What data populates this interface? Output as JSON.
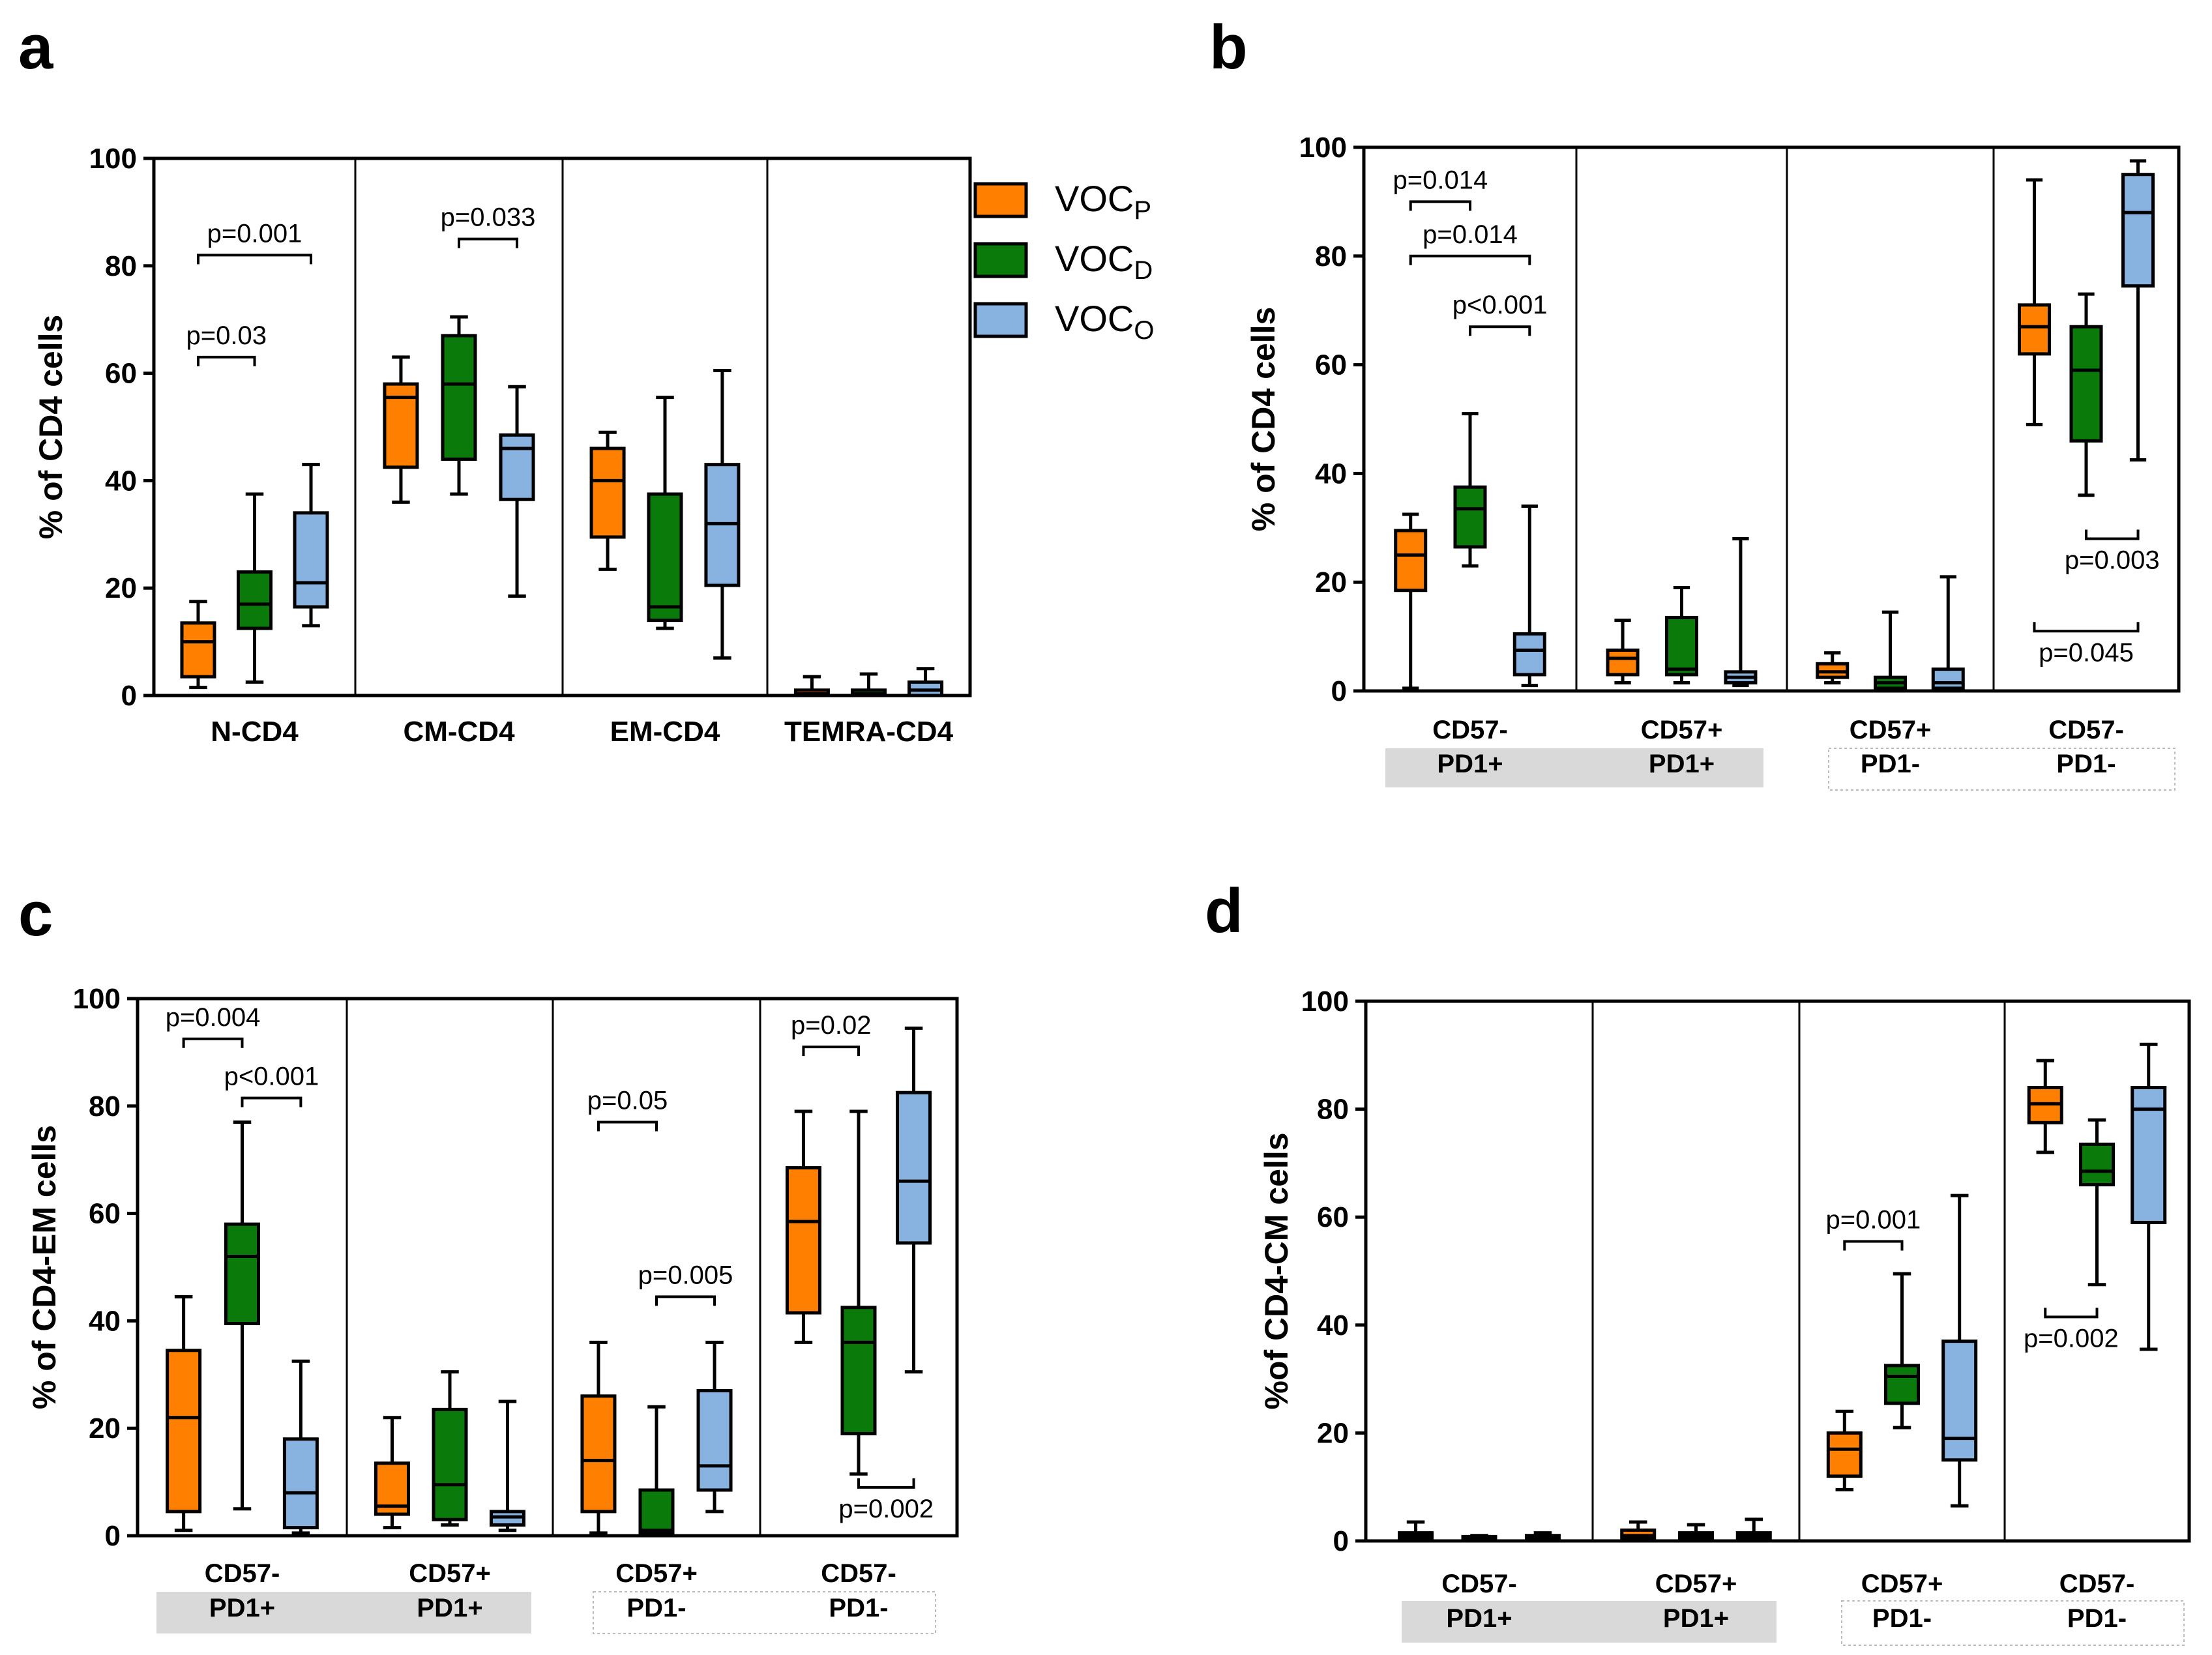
{
  "colors": {
    "VOCP": "#ff8000",
    "VOCD": "#0a7a0a",
    "VOCO": "#88b3e0",
    "shade": "#d9d9d9",
    "black": "#000000"
  },
  "legend": [
    {
      "key": "VOCP",
      "base": "VOC",
      "sub": "P"
    },
    {
      "key": "VOCD",
      "base": "VOC",
      "sub": "D"
    },
    {
      "key": "VOCO",
      "base": "VOC",
      "sub": "O"
    }
  ],
  "chart_data": [
    {
      "panel": "a",
      "type": "box",
      "ylabel": "% of CD4 cells",
      "ylim": [
        0,
        100
      ],
      "yticks": [
        0,
        20,
        40,
        60,
        80,
        100
      ],
      "categories": [
        "N-CD4",
        "CM-CD4",
        "EM-CD4",
        "TEMRA-CD4"
      ],
      "series_order": [
        "VOCP",
        "VOCD",
        "VOCO"
      ],
      "boxes": [
        [
          {
            "min": 1.5,
            "q1": 3.5,
            "med": 10,
            "q3": 13.5,
            "max": 17.5
          },
          {
            "min": 2.5,
            "q1": 12.5,
            "med": 17,
            "q3": 23,
            "max": 37.5
          },
          {
            "min": 13,
            "q1": 16.5,
            "med": 21,
            "q3": 34,
            "max": 43
          }
        ],
        [
          {
            "min": 36,
            "q1": 42.5,
            "med": 55.5,
            "q3": 58,
            "max": 63
          },
          {
            "min": 37.5,
            "q1": 44,
            "med": 58,
            "q3": 67,
            "max": 70.5
          },
          {
            "min": 18.5,
            "q1": 36.5,
            "med": 46,
            "q3": 48.5,
            "max": 57.5
          }
        ],
        [
          {
            "min": 23.5,
            "q1": 29.5,
            "med": 40,
            "q3": 46,
            "max": 49
          },
          {
            "min": 12.5,
            "q1": 14,
            "med": 16.5,
            "q3": 37.5,
            "max": 55.5
          },
          {
            "min": 7,
            "q1": 20.5,
            "med": 32,
            "q3": 43,
            "max": 60.5
          }
        ],
        [
          {
            "min": 0,
            "q1": 0,
            "med": 0.3,
            "q3": 1,
            "max": 3.5
          },
          {
            "min": 0,
            "q1": 0,
            "med": 0.3,
            "q3": 1,
            "max": 4
          },
          {
            "min": 0,
            "q1": 0,
            "med": 1,
            "q3": 2.5,
            "max": 5
          }
        ]
      ],
      "pvalues": [
        {
          "label": "p=0.03",
          "group": 0,
          "from": 0,
          "to": 1,
          "y": 63
        },
        {
          "label": "p=0.001",
          "group": 0,
          "from": 0,
          "to": 2,
          "y": 82
        },
        {
          "label": "p=0.033",
          "group": 1,
          "from": 1,
          "to": 2,
          "y": 85
        }
      ]
    },
    {
      "panel": "b",
      "type": "box",
      "ylabel": "% of CD4 cells",
      "ylim": [
        0,
        100
      ],
      "yticks": [
        0,
        20,
        40,
        60,
        80,
        100
      ],
      "categories": [
        {
          "line1": "CD57-",
          "line2": "PD1+"
        },
        {
          "line1": "CD57+",
          "line2": "PD1+"
        },
        {
          "line1": "CD57+",
          "line2": "PD1-"
        },
        {
          "line1": "CD57-",
          "line2": "PD1-"
        }
      ],
      "series_order": [
        "VOCP",
        "VOCD",
        "VOCO"
      ],
      "boxes": [
        [
          {
            "min": 0.5,
            "q1": 18.5,
            "med": 25,
            "q3": 29.5,
            "max": 32.5
          },
          {
            "min": 23,
            "q1": 26.5,
            "med": 33.5,
            "q3": 37.5,
            "max": 51
          },
          {
            "min": 1,
            "q1": 3,
            "med": 7.5,
            "q3": 10.5,
            "max": 34
          }
        ],
        [
          {
            "min": 1.5,
            "q1": 3,
            "med": 6,
            "q3": 7.5,
            "max": 13
          },
          {
            "min": 1.5,
            "q1": 3,
            "med": 4,
            "q3": 13.5,
            "max": 19
          },
          {
            "min": 1,
            "q1": 1.5,
            "med": 2.5,
            "q3": 3.5,
            "max": 28
          }
        ],
        [
          {
            "min": 1.5,
            "q1": 2.5,
            "med": 3.5,
            "q3": 5,
            "max": 7
          },
          {
            "min": 0,
            "q1": 0.5,
            "med": 1.5,
            "q3": 2.5,
            "max": 14.5
          },
          {
            "min": 0,
            "q1": 0.5,
            "med": 1.5,
            "q3": 4,
            "max": 21
          }
        ],
        [
          {
            "min": 49,
            "q1": 62,
            "med": 67,
            "q3": 71,
            "max": 94
          },
          {
            "min": 36,
            "q1": 46,
            "med": 59,
            "q3": 67,
            "max": 73
          },
          {
            "min": 42.5,
            "q1": 74.5,
            "med": 88,
            "q3": 95,
            "max": 97.5
          }
        ]
      ],
      "pvalues": [
        {
          "label": "p=0.014",
          "group": 0,
          "from": 0,
          "to": 1,
          "y": 90
        },
        {
          "label": "p=0.014",
          "group": 0,
          "from": 0,
          "to": 2,
          "y": 80
        },
        {
          "label": "p<0.001",
          "group": 0,
          "from": 1,
          "to": 2,
          "y": 67
        },
        {
          "label": "p=0.003",
          "group": 3,
          "from": 1,
          "to": 2,
          "y": 28,
          "below": true
        },
        {
          "label": "p=0.045",
          "group": 3,
          "from": 0,
          "to": 2,
          "y": 11,
          "below": true
        }
      ],
      "shaded": [
        [
          0,
          1
        ]
      ],
      "dashed": [
        [
          2,
          3
        ]
      ]
    },
    {
      "panel": "c",
      "type": "box",
      "ylabel": "% of CD4-EM cells",
      "ylim": [
        0,
        100
      ],
      "yticks": [
        0,
        20,
        40,
        60,
        80,
        100
      ],
      "categories": [
        {
          "line1": "CD57-",
          "line2": "PD1+"
        },
        {
          "line1": "CD57+",
          "line2": "PD1+"
        },
        {
          "line1": "CD57+",
          "line2": "PD1-"
        },
        {
          "line1": "CD57-",
          "line2": "PD1-"
        }
      ],
      "series_order": [
        "VOCP",
        "VOCD",
        "VOCO"
      ],
      "boxes": [
        [
          {
            "min": 1,
            "q1": 4.5,
            "med": 22,
            "q3": 34.5,
            "max": 44.5
          },
          {
            "min": 5,
            "q1": 39.5,
            "med": 52,
            "q3": 58,
            "max": 77
          },
          {
            "min": 0.5,
            "q1": 1.5,
            "med": 8,
            "q3": 18,
            "max": 32.5
          }
        ],
        [
          {
            "min": 1.5,
            "q1": 4,
            "med": 5.5,
            "q3": 13.5,
            "max": 22
          },
          {
            "min": 2,
            "q1": 3,
            "med": 9.5,
            "q3": 23.5,
            "max": 30.5
          },
          {
            "min": 1,
            "q1": 2,
            "med": 3.5,
            "q3": 4.5,
            "max": 25
          }
        ],
        [
          {
            "min": 0.5,
            "q1": 4.5,
            "med": 14,
            "q3": 26,
            "max": 36
          },
          {
            "min": 0,
            "q1": 0.5,
            "med": 1,
            "q3": 8.5,
            "max": 24
          },
          {
            "min": 4.5,
            "q1": 8.5,
            "med": 13,
            "q3": 27,
            "max": 36
          }
        ],
        [
          {
            "min": 36,
            "q1": 41.5,
            "med": 58.5,
            "q3": 68.5,
            "max": 79
          },
          {
            "min": 11.5,
            "q1": 19,
            "med": 36,
            "q3": 42.5,
            "max": 79
          },
          {
            "min": 30.5,
            "q1": 54.5,
            "med": 66,
            "q3": 82.5,
            "max": 94.5
          }
        ]
      ],
      "pvalues": [
        {
          "label": "p=0.004",
          "group": 0,
          "from": 0,
          "to": 1,
          "y": 92.5
        },
        {
          "label": "p<0.001",
          "group": 0,
          "from": 1,
          "to": 2,
          "y": 81.5
        },
        {
          "label": "p=0.05",
          "group": 2,
          "from": 0,
          "to": 1,
          "y": 77
        },
        {
          "label": "p=0.005",
          "group": 2,
          "from": 1,
          "to": 2,
          "y": 44.5
        },
        {
          "label": "p=0.02",
          "group": 3,
          "from": 0,
          "to": 1,
          "y": 91
        },
        {
          "label": "p=0.002",
          "group": 3,
          "from": 1,
          "to": 2,
          "y": 9,
          "below": true
        }
      ],
      "shaded": [
        [
          0,
          1
        ]
      ],
      "dashed": [
        [
          2,
          3
        ]
      ]
    },
    {
      "panel": "d",
      "type": "box",
      "ylabel": "%of CD4-CM cells",
      "ylim": [
        0,
        100
      ],
      "yticks": [
        0,
        20,
        40,
        60,
        80,
        100
      ],
      "categories": [
        {
          "line1": "CD57-",
          "line2": "PD1+"
        },
        {
          "line1": "CD57+",
          "line2": "PD1+"
        },
        {
          "line1": "CD57+",
          "line2": "PD1-"
        },
        {
          "line1": "CD57-",
          "line2": "PD1-"
        }
      ],
      "series_order": [
        "VOCP",
        "VOCD",
        "VOCO"
      ],
      "boxes": [
        [
          {
            "min": 0,
            "q1": 0.5,
            "med": 1,
            "q3": 1.5,
            "max": 3.5
          },
          {
            "min": 0,
            "q1": 0.3,
            "med": 0.5,
            "q3": 0.8,
            "max": 1
          },
          {
            "min": 0,
            "q1": 0.3,
            "med": 0.5,
            "q3": 1,
            "max": 1.5
          }
        ],
        [
          {
            "min": 0,
            "q1": 0.5,
            "med": 1,
            "q3": 2,
            "max": 3.5
          },
          {
            "min": 0,
            "q1": 0.5,
            "med": 1,
            "q3": 1.5,
            "max": 3
          },
          {
            "min": 0,
            "q1": 0.5,
            "med": 1,
            "q3": 1.5,
            "max": 4
          }
        ],
        [
          {
            "min": 9.5,
            "q1": 12,
            "med": 17,
            "q3": 20,
            "max": 24
          },
          {
            "min": 21,
            "q1": 25.5,
            "med": 30.5,
            "q3": 32.5,
            "max": 49.5
          },
          {
            "min": 6.5,
            "q1": 15,
            "med": 19,
            "q3": 37,
            "max": 64
          }
        ],
        [
          {
            "min": 72,
            "q1": 77.5,
            "med": 81,
            "q3": 84,
            "max": 89
          },
          {
            "min": 47.5,
            "q1": 66,
            "med": 68.5,
            "q3": 73.5,
            "max": 78
          },
          {
            "min": 35.5,
            "q1": 59,
            "med": 80,
            "q3": 84,
            "max": 92
          }
        ]
      ],
      "pvalues": [
        {
          "label": "p=0.001",
          "group": 2,
          "from": 0,
          "to": 1,
          "y": 55.5
        },
        {
          "label": "p=0.002",
          "group": 3,
          "from": 0,
          "to": 1,
          "y": 41.5,
          "below": true
        }
      ],
      "shaded": [
        [
          0,
          1
        ]
      ],
      "dashed": [
        [
          2,
          3
        ]
      ]
    }
  ]
}
